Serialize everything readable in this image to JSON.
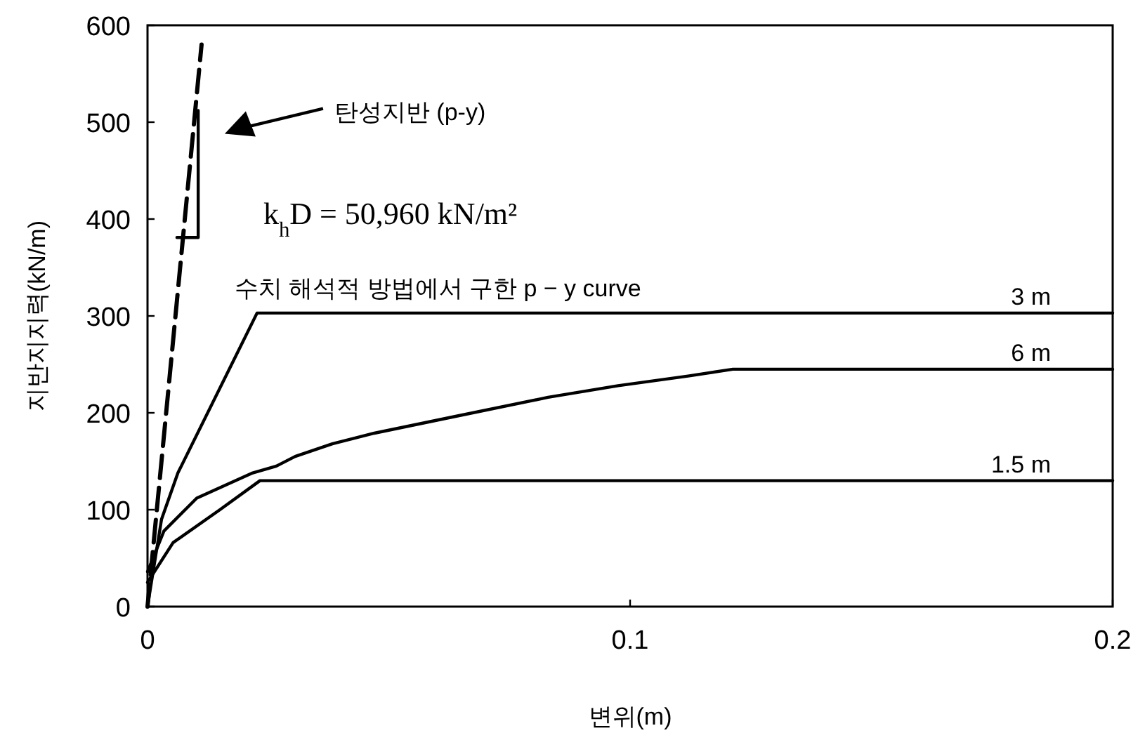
{
  "chart_data": {
    "type": "line",
    "xlabel": "변위(m)",
    "ylabel": "지반지지력(kN/m)",
    "xlim": [
      0,
      0.2
    ],
    "ylim": [
      0,
      600
    ],
    "xticks": [
      0,
      0.1,
      0.2
    ],
    "yticks": [
      0,
      100,
      200,
      300,
      400,
      500,
      600
    ],
    "grid": false,
    "marker": "none",
    "series": [
      {
        "name": "3 m",
        "color": "#000000",
        "line_style": "solid",
        "x": [
          0,
          0.0029,
          0.0063,
          0.0227,
          0.2
        ],
        "values": [
          0,
          90,
          138,
          303,
          303
        ]
      },
      {
        "name": "6 m",
        "color": "#000000",
        "line_style": "solid",
        "x": [
          0,
          0.0034,
          0.0102,
          0.0218,
          0.0267,
          0.0306,
          0.0383,
          0.047,
          0.0635,
          0.083,
          0.0975,
          0.112,
          0.1213,
          0.2
        ],
        "values": [
          36,
          78,
          112,
          138,
          145,
          155,
          168,
          179,
          196,
          216,
          228,
          238,
          245,
          245
        ]
      },
      {
        "name": "1.5 m",
        "color": "#000000",
        "line_style": "solid",
        "x": [
          0,
          0.0053,
          0.015,
          0.0233,
          0.2
        ],
        "values": [
          25,
          66,
          100,
          130,
          130
        ]
      },
      {
        "color": "#000000",
        "line_style": "dashed",
        "x": [
          0,
          0.0112
        ],
        "values": [
          0,
          580
        ]
      },
      {
        "color": "#000000",
        "line_style": "solid",
        "x": [
          0.0061,
          0.0105,
          0.0105
        ],
        "values": [
          381,
          381,
          512
        ]
      }
    ],
    "annotations": [
      "탄성지반 (p-y)",
      "k$_{h}$D =  50,960  kN/m²",
      "수치 해석적 방법에서 구한 p − y curve"
    ]
  }
}
